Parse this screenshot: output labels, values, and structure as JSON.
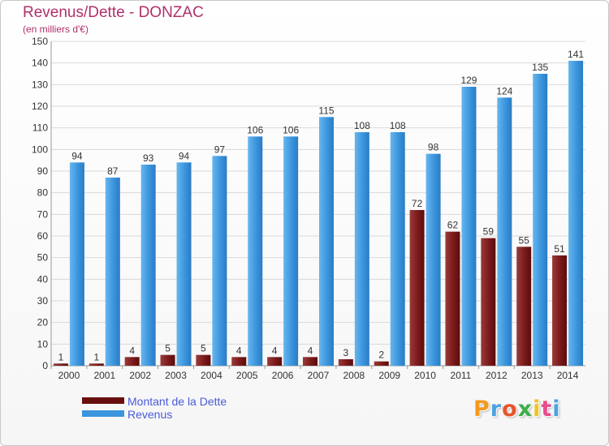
{
  "title": "Revenus/Dette - DONZAC",
  "subtitle": "(en milliers d'€)",
  "logo_text": "Proxiti",
  "colors": {
    "dette": "#7a1a1a",
    "revenus": "#3b95dd",
    "title": "#b0306a",
    "legend_text": "#4a5ad8"
  },
  "legend": [
    {
      "label": "Montant de la Dette",
      "color": "#6a0f0f"
    },
    {
      "label": "Revenus",
      "color": "#3b95dd"
    }
  ],
  "chart_data": {
    "type": "bar",
    "title": "Revenus/Dette - DONZAC",
    "subtitle": "(en milliers d'€)",
    "categories": [
      "2000",
      "2001",
      "2002",
      "2003",
      "2004",
      "2005",
      "2006",
      "2007",
      "2008",
      "2009",
      "2010",
      "2011",
      "2012",
      "2013",
      "2014"
    ],
    "series": [
      {
        "name": "Montant de la Dette",
        "values": [
          1,
          1,
          4,
          5,
          5,
          4,
          4,
          4,
          3,
          2,
          72,
          62,
          59,
          55,
          51
        ]
      },
      {
        "name": "Revenus",
        "values": [
          94,
          87,
          93,
          94,
          97,
          106,
          106,
          115,
          108,
          108,
          98,
          129,
          124,
          135,
          141
        ]
      }
    ],
    "ylim": [
      0,
      150
    ],
    "yticks": [
      0,
      10,
      20,
      30,
      40,
      50,
      60,
      70,
      80,
      90,
      100,
      110,
      120,
      130,
      140,
      150
    ],
    "grid": true,
    "legend_position": "bottom-left"
  }
}
